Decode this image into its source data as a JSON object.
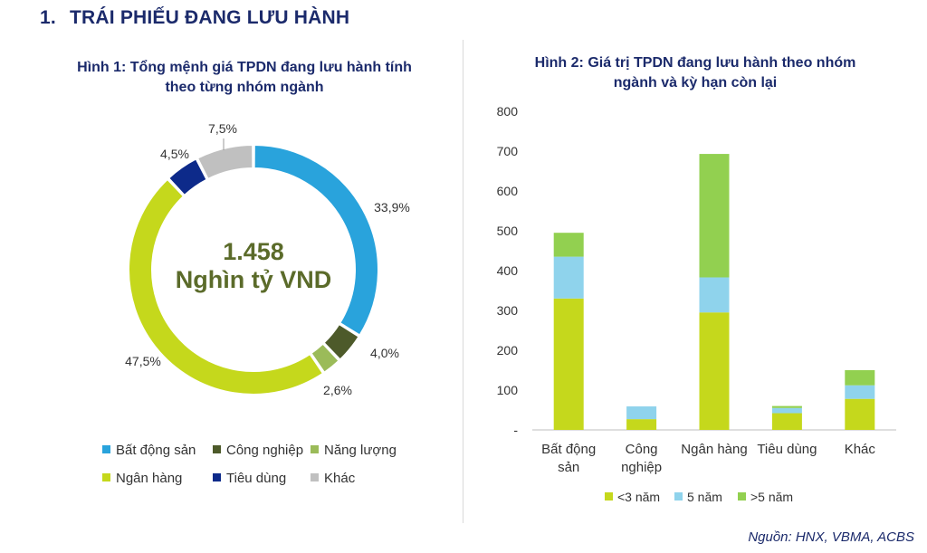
{
  "heading": {
    "number": "1.",
    "text": "TRÁI PHIẾU ĐANG LƯU HÀNH"
  },
  "source": "Nguồn: HNX, VBMA, ACBS",
  "colors": {
    "bat_dong_san": "#29a3dc",
    "cong_nghiep": "#4d5a2a",
    "nang_luong": "#9bbb59",
    "ngan_hang": "#c5d81c",
    "tieu_dung": "#0d2a8a",
    "khac": "#c0c0c0",
    "under3": "#c5d81c",
    "five": "#8fd3ec",
    "over5": "#92d050",
    "axis_text": "#333333",
    "center_text": "#5b6b2a"
  },
  "chart_data": [
    {
      "type": "pie",
      "title": "Hình 1: Tổng mệnh giá TPDN đang lưu hành tính theo từng nhóm ngành",
      "title_lines": [
        "Hình 1: Tổng mệnh giá TPDN đang lưu hành tính",
        "theo từng nhóm ngành"
      ],
      "center_text": [
        "1.458",
        "Nghìn tỷ VND"
      ],
      "legend_position": "bottom",
      "slices": [
        {
          "name": "Bất động sản",
          "value": 33.9,
          "label": "33,9%",
          "color": "#29a3dc"
        },
        {
          "name": "Công nghiệp",
          "value": 4.0,
          "label": "4,0%",
          "color": "#4d5a2a"
        },
        {
          "name": "Năng lượng",
          "value": 2.6,
          "label": "2,6%",
          "color": "#9bbb59"
        },
        {
          "name": "Ngân hàng",
          "value": 47.5,
          "label": "47,5%",
          "color": "#c5d81c"
        },
        {
          "name": "Tiêu dùng",
          "value": 4.5,
          "label": "4,5%",
          "color": "#0d2a8a"
        },
        {
          "name": "Khác",
          "value": 7.5,
          "label": "7,5%",
          "color": "#c0c0c0"
        }
      ]
    },
    {
      "type": "bar",
      "stacked": true,
      "title": "Hình 2: Giá trị TPDN đang lưu hành theo nhóm ngành và kỳ hạn còn lại",
      "title_lines": [
        "Hình 2: Giá trị TPDN đang lưu hành theo nhóm",
        "ngành và kỳ hạn còn lại"
      ],
      "categories": [
        [
          "Bất động",
          "sản"
        ],
        [
          "Công",
          "nghiệp"
        ],
        [
          "Ngân hàng"
        ],
        [
          "Tiêu dùng"
        ],
        [
          "Khác"
        ]
      ],
      "ylim": [
        0,
        800
      ],
      "yticks": [
        0,
        100,
        200,
        300,
        400,
        500,
        600,
        700,
        800
      ],
      "ytick_labels": [
        "-",
        "100",
        "200",
        "300",
        "400",
        "500",
        "600",
        "700",
        "800"
      ],
      "grid": false,
      "legend_position": "bottom",
      "series": [
        {
          "name": "<3 năm",
          "color": "#c5d81c",
          "values": [
            330,
            27,
            295,
            42,
            78
          ]
        },
        {
          "name": "5 năm",
          "color": "#8fd3ec",
          "values": [
            105,
            32,
            88,
            13,
            34
          ]
        },
        {
          "name": ">5 năm",
          "color": "#92d050",
          "values": [
            60,
            0,
            310,
            5,
            38
          ]
        }
      ]
    }
  ]
}
